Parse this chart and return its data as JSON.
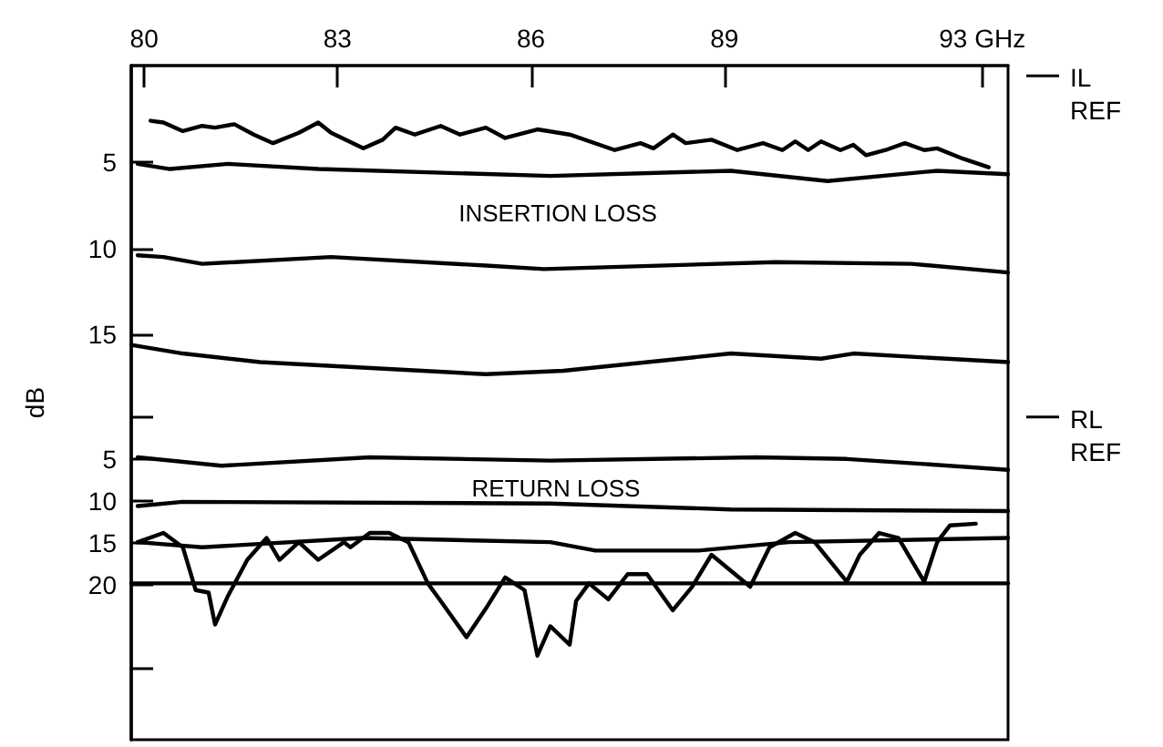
{
  "chart_data": {
    "type": "line",
    "y2label": "dB",
    "annotations": [
      "INSERTION LOSS",
      "RETURN LOSS"
    ],
    "xlim": [
      79.8,
      93.4
    ],
    "xticks": [
      80,
      83,
      86,
      89,
      {
        "value": 93,
        "label": "93 GHz"
      }
    ],
    "ylim": [
      38.5,
      -0.6
    ],
    "yticks": [
      5,
      10,
      15
    ],
    "y2lim": [
      38.4,
      -41.8
    ],
    "y2ticks": [
      {
        "value": 0,
        "label": null
      },
      5,
      10,
      15,
      20,
      {
        "value": 30,
        "label": null
      }
    ],
    "marker": "none",
    "line_style": "solid",
    "ref_lines": [
      {
        "axis": "y",
        "value": 0,
        "label": "IL REF"
      },
      {
        "axis": "y2",
        "value": 0,
        "label": "RL REF"
      }
    ],
    "series": [
      {
        "color": "#000000",
        "x": [
          80.1,
          80.3,
          80.6,
          80.9,
          81.1,
          81.4,
          81.7,
          82.0,
          82.4,
          82.7,
          82.9,
          83.4,
          83.7,
          83.9,
          84.2,
          84.6,
          84.9,
          85.3,
          85.6,
          86.1,
          86.6,
          87.3,
          87.7,
          87.9,
          88.2,
          88.4,
          88.8,
          89.2,
          89.6,
          89.9,
          90.1,
          90.3,
          90.5,
          90.8,
          91.0,
          91.2,
          91.5,
          91.8,
          92.1,
          92.3,
          92.7,
          93.1
        ],
        "values": [
          2.6,
          2.7,
          3.2,
          2.9,
          3.0,
          2.8,
          3.4,
          3.9,
          3.3,
          2.7,
          3.3,
          4.2,
          3.7,
          3.0,
          3.4,
          2.9,
          3.4,
          3.0,
          3.6,
          3.1,
          3.4,
          4.3,
          3.9,
          4.2,
          3.4,
          3.9,
          3.7,
          4.3,
          3.9,
          4.3,
          3.8,
          4.3,
          3.8,
          4.3,
          4.0,
          4.6,
          4.3,
          3.9,
          4.3,
          4.2,
          4.8,
          5.3
        ]
      },
      {
        "color": "#000000",
        "x": [
          79.9,
          80.4,
          81.3,
          82.7,
          86.3,
          89.1,
          90.6,
          92.3,
          93.4
        ],
        "values": [
          5.1,
          5.4,
          5.1,
          5.4,
          5.8,
          5.5,
          6.1,
          5.5,
          5.7
        ]
      },
      {
        "color": "#000000",
        "x": [
          79.9,
          80.3,
          80.9,
          82.9,
          85.3,
          86.2,
          89.8,
          91.9,
          93.4
        ],
        "values": [
          10.4,
          10.5,
          10.9,
          10.5,
          11.0,
          11.2,
          10.8,
          10.9,
          11.4
        ]
      },
      {
        "color": "#000000",
        "x": [
          79.8,
          80.6,
          81.8,
          85.3,
          86.5,
          89.1,
          90.5,
          91.0,
          93.4
        ],
        "values": [
          15.6,
          16.1,
          16.6,
          17.3,
          17.1,
          16.1,
          16.4,
          16.1,
          16.6
        ]
      },
      {
        "color": "#000000",
        "axis": "y2",
        "x": [
          79.9,
          81.2,
          83.5,
          86.3,
          89.5,
          90.9,
          92.1,
          93.4
        ],
        "values": [
          4.8,
          5.8,
          4.8,
          5.2,
          4.8,
          5.0,
          5.6,
          6.3
        ]
      },
      {
        "color": "#000000",
        "axis": "y2",
        "x": [
          79.9,
          80.6,
          86.3,
          89.1,
          93.4
        ],
        "values": [
          10.6,
          10.1,
          10.3,
          11.0,
          11.2
        ]
      },
      {
        "color": "#000000",
        "axis": "y2",
        "x": [
          79.9,
          80.9,
          83.4,
          86.3,
          87.0,
          88.6,
          90.0,
          93.4
        ],
        "values": [
          14.9,
          15.5,
          14.4,
          14.9,
          15.9,
          15.9,
          14.9,
          14.4
        ]
      },
      {
        "color": "#000000",
        "axis": "y2",
        "x": [
          79.8,
          93.4
        ],
        "values": [
          19.8,
          19.8
        ]
      },
      {
        "color": "#000000",
        "axis": "y2",
        "x": [
          79.9,
          80.3,
          80.6,
          80.8,
          81.0,
          81.1,
          81.3,
          81.6,
          81.9,
          82.1,
          82.4,
          82.7,
          83.1,
          83.2,
          83.5,
          83.8,
          84.1,
          84.4,
          84.6,
          85.0,
          85.3,
          85.6,
          85.9,
          86.1,
          86.3,
          86.6,
          86.7,
          86.9,
          87.2,
          87.5,
          87.8,
          88.2,
          88.5,
          88.8,
          89.4,
          89.7,
          90.1,
          90.4,
          90.9,
          91.1,
          91.4,
          91.7,
          92.1,
          92.3,
          92.5,
          92.9
        ],
        "values": [
          14.9,
          13.8,
          15.5,
          20.6,
          20.9,
          24.7,
          21.3,
          17.0,
          14.4,
          17.0,
          14.9,
          17.0,
          14.9,
          15.5,
          13.8,
          13.8,
          14.9,
          19.8,
          21.9,
          26.2,
          22.8,
          19.1,
          20.6,
          28.4,
          24.9,
          27.1,
          21.9,
          19.8,
          21.7,
          18.7,
          18.7,
          23.0,
          20.2,
          16.4,
          20.2,
          15.5,
          13.8,
          14.9,
          19.6,
          16.4,
          13.8,
          14.4,
          19.6,
          14.9,
          12.9,
          12.7
        ]
      }
    ]
  }
}
